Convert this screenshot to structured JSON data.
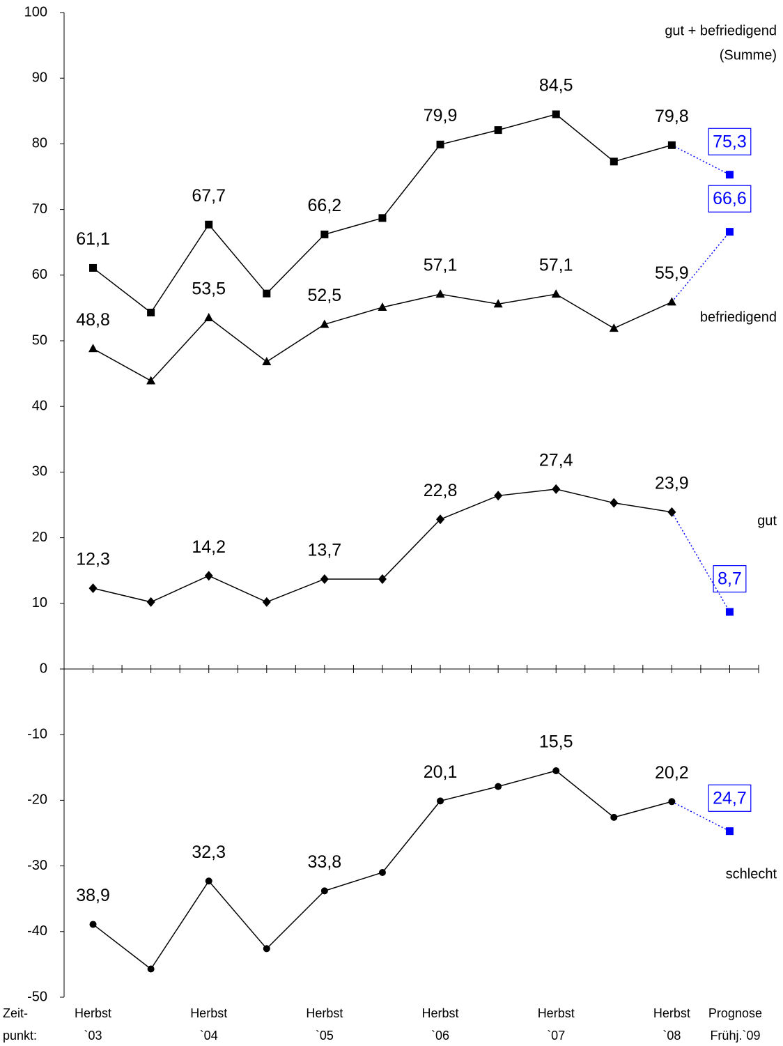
{
  "chart_data": {
    "type": "line",
    "xlabel": [
      "Zeit-",
      "punkt:"
    ],
    "categories": [
      [
        "Herbst",
        "`03"
      ],
      null,
      [
        "Herbst",
        "`04"
      ],
      null,
      [
        "Herbst",
        "`05"
      ],
      null,
      [
        "Herbst",
        "`06"
      ],
      null,
      [
        "Herbst",
        "`07"
      ],
      null,
      [
        "Herbst",
        "`08"
      ],
      [
        "Prognose",
        "Frühj.`09"
      ]
    ],
    "ylim": [
      -50,
      100
    ],
    "yticks": [
      -50,
      -40,
      -30,
      -20,
      -10,
      0,
      10,
      20,
      30,
      40,
      50,
      60,
      70,
      80,
      90,
      100
    ],
    "forecast_color": "#0000ff",
    "series": [
      {
        "name": [
          "gut + befriedigend",
          "(Summe)"
        ],
        "color": "#000000",
        "marker": "square",
        "values": [
          61.1,
          54.3,
          67.7,
          57.2,
          66.2,
          68.7,
          79.9,
          82.1,
          84.5,
          77.3,
          79.8,
          75.3
        ],
        "value_labels": [
          "61,1",
          null,
          "67,7",
          null,
          "66,2",
          null,
          "79,9",
          null,
          "84,5",
          null,
          "79,8",
          "75,3"
        ]
      },
      {
        "name": [
          "befriedigend"
        ],
        "color": "#000000",
        "marker": "triangle",
        "values": [
          48.8,
          43.9,
          53.5,
          46.8,
          52.5,
          55.1,
          57.1,
          55.6,
          57.1,
          51.9,
          55.9,
          66.6
        ],
        "value_labels": [
          "48,8",
          null,
          "53,5",
          null,
          "52,5",
          null,
          "57,1",
          null,
          "57,1",
          null,
          "55,9",
          "66,6"
        ]
      },
      {
        "name": [
          "gut"
        ],
        "color": "#000000",
        "marker": "diamond",
        "values": [
          12.3,
          10.2,
          14.2,
          10.2,
          13.7,
          13.7,
          22.8,
          26.4,
          27.4,
          25.3,
          23.9,
          8.7
        ],
        "value_labels": [
          "12,3",
          null,
          "14,2",
          null,
          "13,7",
          null,
          "22,8",
          null,
          "27,4",
          null,
          "23,9",
          "8,7"
        ]
      },
      {
        "name": [
          "schlecht"
        ],
        "color": "#000000",
        "marker": "circle",
        "values": [
          -38.9,
          -45.7,
          -32.3,
          -42.6,
          -33.8,
          -31.0,
          -20.1,
          -17.9,
          -15.5,
          -22.6,
          -20.2,
          -24.7
        ],
        "value_labels": [
          "38,9",
          null,
          "32,3",
          null,
          "33,8",
          null,
          "20,1",
          null,
          "15,5",
          null,
          "20,2",
          "24,7"
        ]
      }
    ]
  }
}
